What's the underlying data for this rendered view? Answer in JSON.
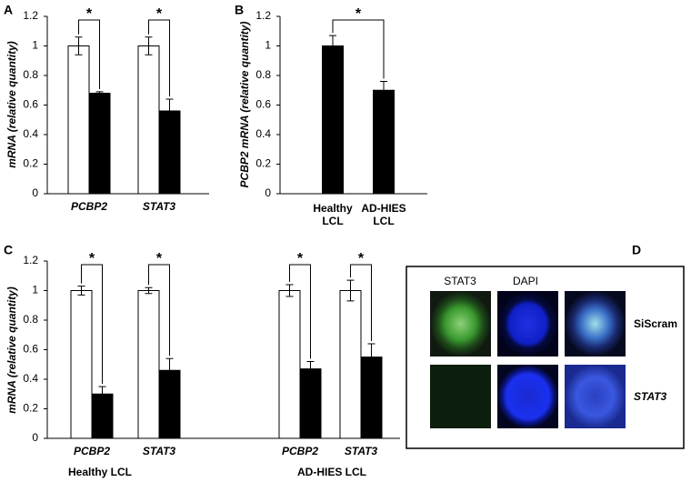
{
  "chart_data": [
    {
      "type": "bar",
      "panel_label": "A",
      "y_label": "mRNA (relative quantity)",
      "categories": [
        "PCBP2",
        "STAT3"
      ],
      "series": [
        {
          "color": "#ffffff",
          "values": [
            1,
            1
          ],
          "errors": [
            0.06,
            0.06
          ]
        },
        {
          "color": "#000000",
          "values": [
            0.68,
            0.56
          ],
          "errors": [
            0.01,
            0.08
          ]
        }
      ],
      "ylim": [
        0,
        1.2
      ],
      "yticks": [
        0,
        0.2,
        0.4,
        0.6,
        0.8,
        1,
        1.2
      ],
      "annotations": [
        "*",
        "*"
      ]
    },
    {
      "type": "bar",
      "panel_label": "B",
      "y_label": "PCBP2 mRNA (relative quantity)",
      "categories": [
        "Healthy LCL",
        "AD-HIES LCL"
      ],
      "series": [
        {
          "color": "#000000",
          "values": [
            1,
            0.7
          ],
          "errors": [
            0.07,
            0.06
          ]
        }
      ],
      "ylim": [
        0,
        1.2
      ],
      "yticks": [
        0,
        0.2,
        0.4,
        0.6,
        0.8,
        1,
        1.2
      ],
      "annotations": [
        "*"
      ]
    },
    {
      "type": "bar",
      "panel_label": "C",
      "y_label": "mRNA (relative quantity)",
      "categories": [
        "PCBP2",
        "STAT3",
        "PCBP2",
        "STAT3"
      ],
      "groups": [
        "Healthy LCL",
        "AD-HIES LCL"
      ],
      "series": [
        {
          "color": "#ffffff",
          "values": [
            1,
            1,
            1,
            1
          ],
          "errors": [
            0.03,
            0.02,
            0.04,
            0.07
          ]
        },
        {
          "color": "#000000",
          "values": [
            0.3,
            0.46,
            0.47,
            0.55
          ],
          "errors": [
            0.05,
            0.08,
            0.05,
            0.09
          ]
        }
      ],
      "ylim": [
        0,
        1.2
      ],
      "yticks": [
        0,
        0.2,
        0.4,
        0.6,
        0.8,
        1,
        1.2
      ],
      "annotations": [
        "*",
        "*",
        "*",
        "*"
      ]
    }
  ],
  "panel_d": {
    "panel_label": "D",
    "column_labels": [
      "STAT3",
      "DAPI"
    ],
    "row_labels": [
      "SiScram",
      "STAT3"
    ]
  }
}
